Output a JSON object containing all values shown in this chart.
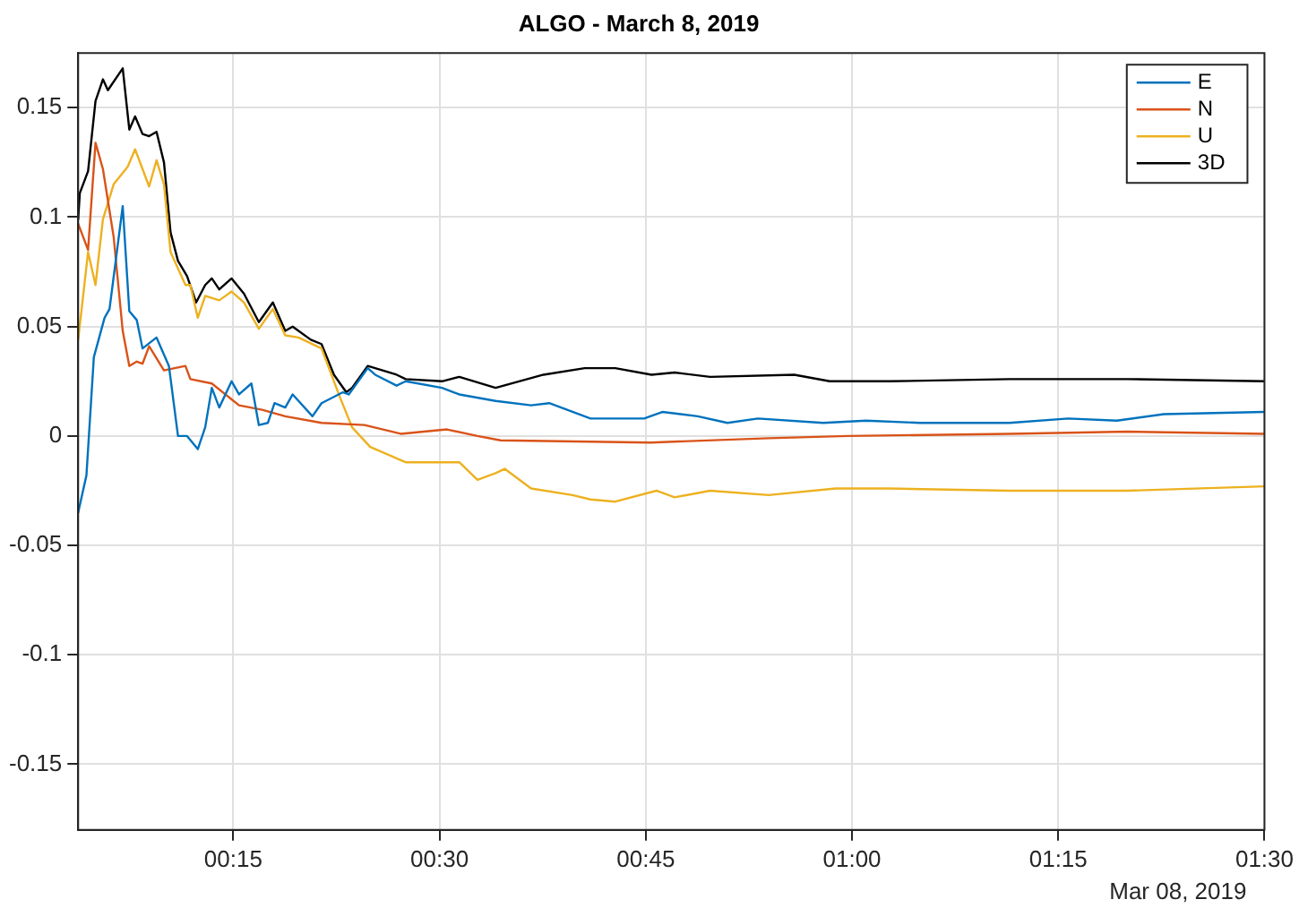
{
  "chart_data": {
    "type": "line",
    "title": "ALGO - March 8, 2019",
    "legend": "top right",
    "grid": true,
    "marker": "none",
    "line_style": "solid",
    "xlim": [
      0.062,
      1.5
    ],
    "ylim": [
      -0.18,
      0.175
    ],
    "xticks": [
      {
        "value": 0.25,
        "label": "00:15"
      },
      {
        "value": 0.5,
        "label": "00:30"
      },
      {
        "value": 0.75,
        "label": "00:45"
      },
      {
        "value": 1,
        "label": "01:00"
      },
      {
        "value": 1.25,
        "label": "01:15"
      },
      {
        "value": 1.5,
        "label": "01:30"
      }
    ],
    "yticks": [
      -0.15,
      -0.1,
      -0.05,
      0,
      0.05,
      0.1,
      0.15
    ],
    "annotations": [
      "Mar 08, 2019"
    ],
    "series": [
      {
        "name": "E",
        "color": "#0072bd",
        "x": [
          0.062,
          0.072,
          0.081,
          0.094,
          0.1,
          0.116,
          0.124,
          0.133,
          0.14,
          0.157,
          0.172,
          0.183,
          0.194,
          0.207,
          0.216,
          0.224,
          0.233,
          0.248,
          0.257,
          0.272,
          0.281,
          0.292,
          0.3,
          0.313,
          0.322,
          0.346,
          0.357,
          0.383,
          0.39,
          0.413,
          0.422,
          0.448,
          0.459,
          0.503,
          0.524,
          0.568,
          0.611,
          0.633,
          0.683,
          0.748,
          0.77,
          0.813,
          0.849,
          0.886,
          0.965,
          1.017,
          1.082,
          1.191,
          1.262,
          1.321,
          1.378,
          1.5
        ],
        "values": [
          -0.035,
          -0.018,
          0.036,
          0.054,
          0.058,
          0.105,
          0.057,
          0.053,
          0.04,
          0.045,
          0.032,
          0.0,
          0.0,
          -0.006,
          0.004,
          0.022,
          0.013,
          0.025,
          0.019,
          0.024,
          0.005,
          0.006,
          0.015,
          0.013,
          0.019,
          0.009,
          0.015,
          0.02,
          0.019,
          0.031,
          0.028,
          0.023,
          0.025,
          0.022,
          0.019,
          0.016,
          0.014,
          0.015,
          0.008,
          0.008,
          0.011,
          0.009,
          0.006,
          0.008,
          0.006,
          0.007,
          0.006,
          0.006,
          0.008,
          0.007,
          0.01,
          0.011
        ]
      },
      {
        "name": "N",
        "color": "#d95319",
        "x": [
          0.062,
          0.074,
          0.083,
          0.092,
          0.105,
          0.116,
          0.124,
          0.133,
          0.14,
          0.148,
          0.166,
          0.192,
          0.198,
          0.224,
          0.257,
          0.285,
          0.313,
          0.357,
          0.409,
          0.453,
          0.509,
          0.546,
          0.574,
          0.756,
          0.899,
          0.995,
          1.191,
          1.334,
          1.5
        ],
        "values": [
          0.097,
          0.085,
          0.134,
          0.122,
          0.091,
          0.048,
          0.032,
          0.034,
          0.033,
          0.041,
          0.03,
          0.032,
          0.026,
          0.024,
          0.014,
          0.012,
          0.009,
          0.006,
          0.005,
          0.001,
          0.003,
          0.0,
          -0.002,
          -0.003,
          -0.001,
          0.0,
          0.001,
          0.002,
          0.001
        ]
      },
      {
        "name": "U",
        "color": "#edb120",
        "x": [
          0.062,
          0.074,
          0.083,
          0.092,
          0.105,
          0.122,
          0.131,
          0.148,
          0.157,
          0.166,
          0.174,
          0.192,
          0.198,
          0.207,
          0.216,
          0.233,
          0.248,
          0.263,
          0.281,
          0.298,
          0.313,
          0.329,
          0.357,
          0.379,
          0.394,
          0.416,
          0.453,
          0.459,
          0.481,
          0.524,
          0.546,
          0.568,
          0.579,
          0.611,
          0.661,
          0.683,
          0.713,
          0.763,
          0.785,
          0.828,
          0.899,
          0.98,
          1.045,
          1.191,
          1.334,
          1.5
        ],
        "values": [
          0.044,
          0.084,
          0.069,
          0.099,
          0.115,
          0.123,
          0.131,
          0.114,
          0.126,
          0.115,
          0.084,
          0.069,
          0.069,
          0.054,
          0.064,
          0.062,
          0.066,
          0.061,
          0.049,
          0.058,
          0.046,
          0.045,
          0.04,
          0.018,
          0.004,
          -0.005,
          -0.011,
          -0.012,
          -0.012,
          -0.012,
          -0.02,
          -0.017,
          -0.015,
          -0.024,
          -0.027,
          -0.029,
          -0.03,
          -0.025,
          -0.028,
          -0.025,
          -0.027,
          -0.024,
          -0.024,
          -0.025,
          -0.025,
          -0.023
        ]
      },
      {
        "name": "3D",
        "color": "#000000",
        "x": [
          0.062,
          0.064,
          0.074,
          0.083,
          0.092,
          0.098,
          0.116,
          0.124,
          0.131,
          0.14,
          0.148,
          0.157,
          0.166,
          0.174,
          0.183,
          0.194,
          0.205,
          0.216,
          0.224,
          0.233,
          0.248,
          0.263,
          0.281,
          0.298,
          0.313,
          0.322,
          0.344,
          0.357,
          0.372,
          0.387,
          0.394,
          0.413,
          0.422,
          0.448,
          0.459,
          0.503,
          0.524,
          0.568,
          0.626,
          0.676,
          0.713,
          0.757,
          0.785,
          0.828,
          0.93,
          0.973,
          1.045,
          1.191,
          1.334,
          1.5
        ],
        "values": [
          0.099,
          0.111,
          0.121,
          0.153,
          0.163,
          0.158,
          0.168,
          0.14,
          0.146,
          0.138,
          0.137,
          0.139,
          0.125,
          0.093,
          0.08,
          0.073,
          0.061,
          0.069,
          0.072,
          0.067,
          0.072,
          0.065,
          0.052,
          0.061,
          0.048,
          0.05,
          0.044,
          0.042,
          0.028,
          0.02,
          0.022,
          0.032,
          0.031,
          0.028,
          0.026,
          0.025,
          0.027,
          0.022,
          0.028,
          0.031,
          0.031,
          0.028,
          0.029,
          0.027,
          0.028,
          0.025,
          0.025,
          0.026,
          0.026,
          0.025
        ]
      }
    ]
  }
}
